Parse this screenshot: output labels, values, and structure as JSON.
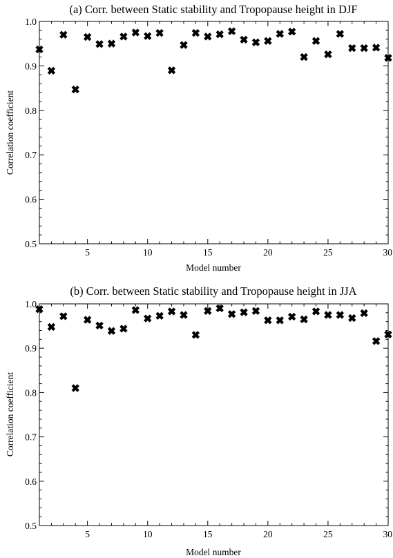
{
  "chart_data": [
    {
      "type": "scatter",
      "panel": "a",
      "title": "(a) Corr. between Static stability and Tropopause height in DJF",
      "xlabel": "Model number",
      "ylabel": "Correlation coefficient",
      "xlim": [
        1,
        30
      ],
      "ylim": [
        0.5,
        1.0
      ],
      "xticks": [
        5,
        10,
        15,
        20,
        25,
        30
      ],
      "yticks": [
        0.5,
        0.6,
        0.7,
        0.8,
        0.9,
        1.0
      ],
      "xtick_labels": [
        "5",
        "10",
        "15",
        "20",
        "25",
        "30"
      ],
      "ytick_labels": [
        "0.5",
        "0.6",
        "0.7",
        "0.8",
        "0.9",
        "1.0"
      ],
      "grid": false,
      "marker": "x",
      "color": "#000000",
      "x": [
        1,
        2,
        3,
        4,
        5,
        6,
        7,
        8,
        9,
        10,
        11,
        12,
        13,
        14,
        15,
        16,
        17,
        18,
        19,
        20,
        21,
        22,
        23,
        24,
        25,
        26,
        27,
        28,
        29,
        30
      ],
      "y": [
        0.937,
        0.889,
        0.97,
        0.847,
        0.965,
        0.949,
        0.95,
        0.966,
        0.975,
        0.967,
        0.974,
        0.89,
        0.947,
        0.974,
        0.966,
        0.971,
        0.978,
        0.959,
        0.953,
        0.956,
        0.972,
        0.977,
        0.92,
        0.956,
        0.926,
        0.972,
        0.94,
        0.94,
        0.941,
        0.918
      ]
    },
    {
      "type": "scatter",
      "panel": "b",
      "title": "(b) Corr. between Static stability and Tropopause height in JJA",
      "xlabel": "Model number",
      "ylabel": "Correlation coefficient",
      "xlim": [
        1,
        30
      ],
      "ylim": [
        0.5,
        1.0
      ],
      "xticks": [
        5,
        10,
        15,
        20,
        25,
        30
      ],
      "yticks": [
        0.5,
        0.6,
        0.7,
        0.8,
        0.9,
        1.0
      ],
      "xtick_labels": [
        "5",
        "10",
        "15",
        "20",
        "25",
        "30"
      ],
      "ytick_labels": [
        "0.5",
        "0.6",
        "0.7",
        "0.8",
        "0.9",
        "1.0"
      ],
      "grid": false,
      "marker": "x",
      "color": "#000000",
      "x": [
        1,
        2,
        3,
        4,
        5,
        6,
        7,
        8,
        9,
        10,
        11,
        12,
        13,
        14,
        15,
        16,
        17,
        18,
        19,
        20,
        21,
        22,
        23,
        24,
        25,
        26,
        27,
        28,
        29,
        30
      ],
      "y": [
        0.988,
        0.948,
        0.972,
        0.81,
        0.964,
        0.951,
        0.939,
        0.944,
        0.986,
        0.967,
        0.973,
        0.983,
        0.975,
        0.93,
        0.984,
        0.99,
        0.977,
        0.981,
        0.984,
        0.963,
        0.963,
        0.971,
        0.965,
        0.983,
        0.975,
        0.975,
        0.968,
        0.979,
        0.916,
        0.931
      ]
    }
  ]
}
